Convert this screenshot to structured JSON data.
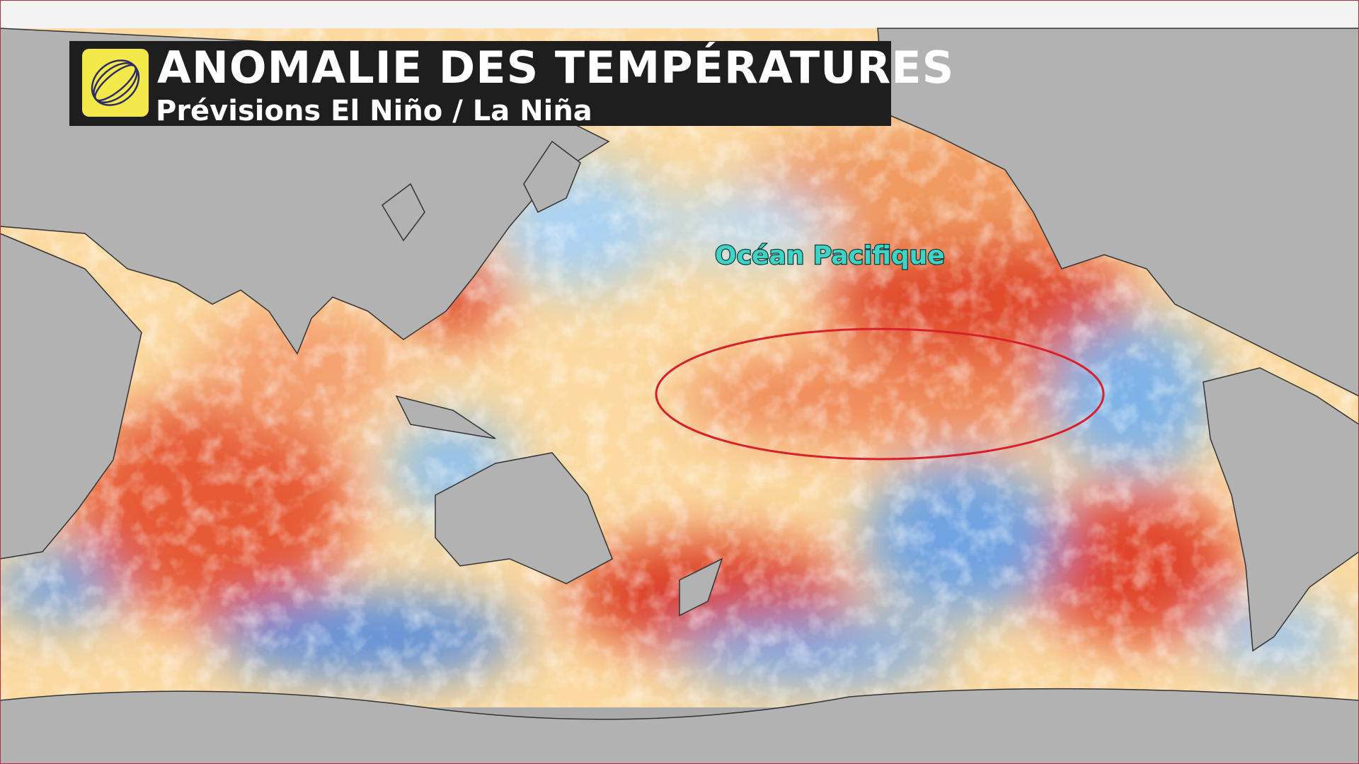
{
  "header": {
    "title": "ANOMALIE DES TEMPÉRATURES",
    "subtitle": "Prévisions El Niño / La Niña"
  },
  "labels": {
    "ocean": "Océan Pacifique"
  }
}
